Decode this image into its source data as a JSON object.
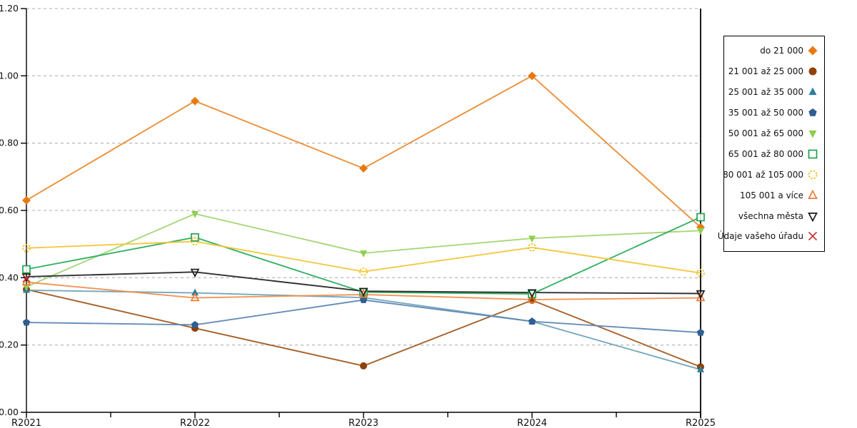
{
  "chart_data": {
    "type": "line",
    "title": "",
    "xlabel": "",
    "ylabel": "",
    "categories": [
      "R2021",
      "R2022",
      "R2023",
      "R2024",
      "R2025"
    ],
    "ylim": [
      0.0,
      1.2
    ],
    "ytick_labels": [
      "0.00",
      "0.20",
      "0.40",
      "0.60",
      "0.80",
      "1.00",
      "1.20"
    ],
    "yticks": [
      0.0,
      0.2,
      0.4,
      0.6,
      0.8,
      1.0,
      1.2
    ],
    "grid": "horizontal-dashed",
    "legend_position": "right",
    "series": [
      {
        "name": "do 21 000",
        "marker": "diamond",
        "color": "#E8790F",
        "line_color": "#EA8A30",
        "values": [
          0.63,
          0.925,
          0.725,
          1.0,
          0.55
        ]
      },
      {
        "name": "21 001 až 25 000",
        "marker": "circle",
        "color": "#8F4108",
        "line_color": "#A0581C",
        "values": [
          0.365,
          0.25,
          0.138,
          0.333,
          0.135
        ]
      },
      {
        "name": "25 001 až 35 000",
        "marker": "triangle-up",
        "color": "#2E7E9E",
        "line_color": "#6FA3BC",
        "values": [
          0.363,
          0.355,
          0.341,
          0.27,
          0.127
        ]
      },
      {
        "name": "35 001 až 50 000",
        "marker": "pentagon",
        "color": "#2F5E91",
        "line_color": "#5E87B4",
        "values": [
          0.267,
          0.26,
          0.334,
          0.27,
          0.237
        ]
      },
      {
        "name": "50 001 až 65 000",
        "marker": "triangle-down",
        "color": "#8FCE4E",
        "line_color": "#A3D571",
        "values": [
          0.373,
          0.59,
          0.473,
          0.517,
          0.54
        ]
      },
      {
        "name": "65 001 až 80 000",
        "marker": "square-open",
        "color": "#1FA350",
        "line_color": "#2BAD5E",
        "values": [
          0.425,
          0.52,
          0.357,
          0.352,
          0.58
        ]
      },
      {
        "name": "80 001 až 105 000",
        "marker": "circle-open-dashed",
        "color": "#F0C01A",
        "line_color": "#F2C637",
        "values": [
          0.488,
          0.508,
          0.418,
          0.49,
          0.414
        ]
      },
      {
        "name": "105 001 a více",
        "marker": "triangle-up-open",
        "color": "#ED7D31",
        "line_color": "#F08F4D",
        "values": [
          0.387,
          0.34,
          0.35,
          0.335,
          0.34
        ]
      },
      {
        "name": "všechna města",
        "marker": "triangle-down-open",
        "color": "#1A1A1A",
        "line_color": "#262626",
        "values": [
          0.403,
          0.417,
          0.36,
          0.356,
          0.353
        ]
      },
      {
        "name": "Údaje vašeho úřadu",
        "marker": "x-cross",
        "color": "#CC2A2A",
        "line_color": "#CC2A2A",
        "values": [
          0.398,
          null,
          null,
          null,
          null
        ]
      }
    ]
  },
  "colors": {
    "background": "#FFFFFF",
    "grid": "#BDBDBD",
    "axis": "#000000",
    "legend_border": "#000000",
    "tick_text": "#111111"
  }
}
